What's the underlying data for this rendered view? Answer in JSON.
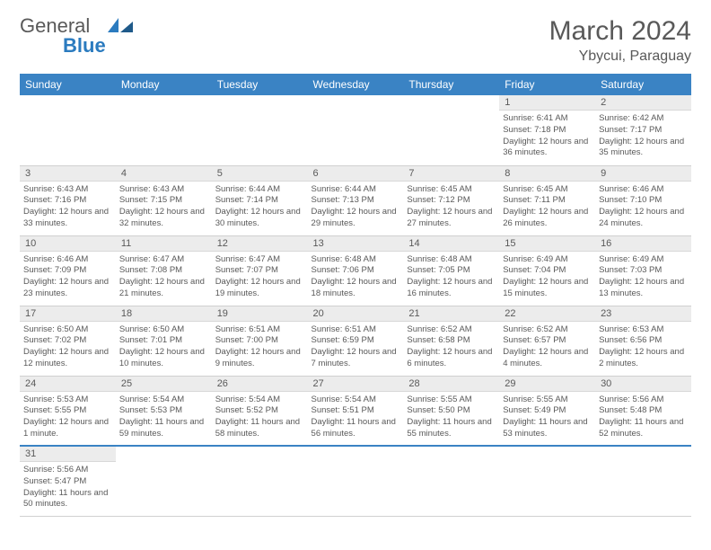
{
  "logo": {
    "text1": "General",
    "text2": "Blue"
  },
  "title": "March 2024",
  "location": "Ybycui, Paraguay",
  "colors": {
    "header_bg": "#3a83c4",
    "header_text": "#ffffff",
    "daynum_bg": "#ececec",
    "text": "#595959",
    "accent_border": "#3a83c4"
  },
  "day_headers": [
    "Sunday",
    "Monday",
    "Tuesday",
    "Wednesday",
    "Thursday",
    "Friday",
    "Saturday"
  ],
  "weeks": [
    [
      null,
      null,
      null,
      null,
      null,
      {
        "n": "1",
        "sunrise": "6:41 AM",
        "sunset": "7:18 PM",
        "daylight": "12 hours and 36 minutes."
      },
      {
        "n": "2",
        "sunrise": "6:42 AM",
        "sunset": "7:17 PM",
        "daylight": "12 hours and 35 minutes."
      }
    ],
    [
      {
        "n": "3",
        "sunrise": "6:43 AM",
        "sunset": "7:16 PM",
        "daylight": "12 hours and 33 minutes."
      },
      {
        "n": "4",
        "sunrise": "6:43 AM",
        "sunset": "7:15 PM",
        "daylight": "12 hours and 32 minutes."
      },
      {
        "n": "5",
        "sunrise": "6:44 AM",
        "sunset": "7:14 PM",
        "daylight": "12 hours and 30 minutes."
      },
      {
        "n": "6",
        "sunrise": "6:44 AM",
        "sunset": "7:13 PM",
        "daylight": "12 hours and 29 minutes."
      },
      {
        "n": "7",
        "sunrise": "6:45 AM",
        "sunset": "7:12 PM",
        "daylight": "12 hours and 27 minutes."
      },
      {
        "n": "8",
        "sunrise": "6:45 AM",
        "sunset": "7:11 PM",
        "daylight": "12 hours and 26 minutes."
      },
      {
        "n": "9",
        "sunrise": "6:46 AM",
        "sunset": "7:10 PM",
        "daylight": "12 hours and 24 minutes."
      }
    ],
    [
      {
        "n": "10",
        "sunrise": "6:46 AM",
        "sunset": "7:09 PM",
        "daylight": "12 hours and 23 minutes."
      },
      {
        "n": "11",
        "sunrise": "6:47 AM",
        "sunset": "7:08 PM",
        "daylight": "12 hours and 21 minutes."
      },
      {
        "n": "12",
        "sunrise": "6:47 AM",
        "sunset": "7:07 PM",
        "daylight": "12 hours and 19 minutes."
      },
      {
        "n": "13",
        "sunrise": "6:48 AM",
        "sunset": "7:06 PM",
        "daylight": "12 hours and 18 minutes."
      },
      {
        "n": "14",
        "sunrise": "6:48 AM",
        "sunset": "7:05 PM",
        "daylight": "12 hours and 16 minutes."
      },
      {
        "n": "15",
        "sunrise": "6:49 AM",
        "sunset": "7:04 PM",
        "daylight": "12 hours and 15 minutes."
      },
      {
        "n": "16",
        "sunrise": "6:49 AM",
        "sunset": "7:03 PM",
        "daylight": "12 hours and 13 minutes."
      }
    ],
    [
      {
        "n": "17",
        "sunrise": "6:50 AM",
        "sunset": "7:02 PM",
        "daylight": "12 hours and 12 minutes."
      },
      {
        "n": "18",
        "sunrise": "6:50 AM",
        "sunset": "7:01 PM",
        "daylight": "12 hours and 10 minutes."
      },
      {
        "n": "19",
        "sunrise": "6:51 AM",
        "sunset": "7:00 PM",
        "daylight": "12 hours and 9 minutes."
      },
      {
        "n": "20",
        "sunrise": "6:51 AM",
        "sunset": "6:59 PM",
        "daylight": "12 hours and 7 minutes."
      },
      {
        "n": "21",
        "sunrise": "6:52 AM",
        "sunset": "6:58 PM",
        "daylight": "12 hours and 6 minutes."
      },
      {
        "n": "22",
        "sunrise": "6:52 AM",
        "sunset": "6:57 PM",
        "daylight": "12 hours and 4 minutes."
      },
      {
        "n": "23",
        "sunrise": "6:53 AM",
        "sunset": "6:56 PM",
        "daylight": "12 hours and 2 minutes."
      }
    ],
    [
      {
        "n": "24",
        "sunrise": "5:53 AM",
        "sunset": "5:55 PM",
        "daylight": "12 hours and 1 minute."
      },
      {
        "n": "25",
        "sunrise": "5:54 AM",
        "sunset": "5:53 PM",
        "daylight": "11 hours and 59 minutes."
      },
      {
        "n": "26",
        "sunrise": "5:54 AM",
        "sunset": "5:52 PM",
        "daylight": "11 hours and 58 minutes."
      },
      {
        "n": "27",
        "sunrise": "5:54 AM",
        "sunset": "5:51 PM",
        "daylight": "11 hours and 56 minutes."
      },
      {
        "n": "28",
        "sunrise": "5:55 AM",
        "sunset": "5:50 PM",
        "daylight": "11 hours and 55 minutes."
      },
      {
        "n": "29",
        "sunrise": "5:55 AM",
        "sunset": "5:49 PM",
        "daylight": "11 hours and 53 minutes."
      },
      {
        "n": "30",
        "sunrise": "5:56 AM",
        "sunset": "5:48 PM",
        "daylight": "11 hours and 52 minutes."
      }
    ],
    [
      {
        "n": "31",
        "sunrise": "5:56 AM",
        "sunset": "5:47 PM",
        "daylight": "11 hours and 50 minutes."
      },
      null,
      null,
      null,
      null,
      null,
      null
    ]
  ],
  "labels": {
    "sunrise": "Sunrise:",
    "sunset": "Sunset:",
    "daylight": "Daylight:"
  }
}
